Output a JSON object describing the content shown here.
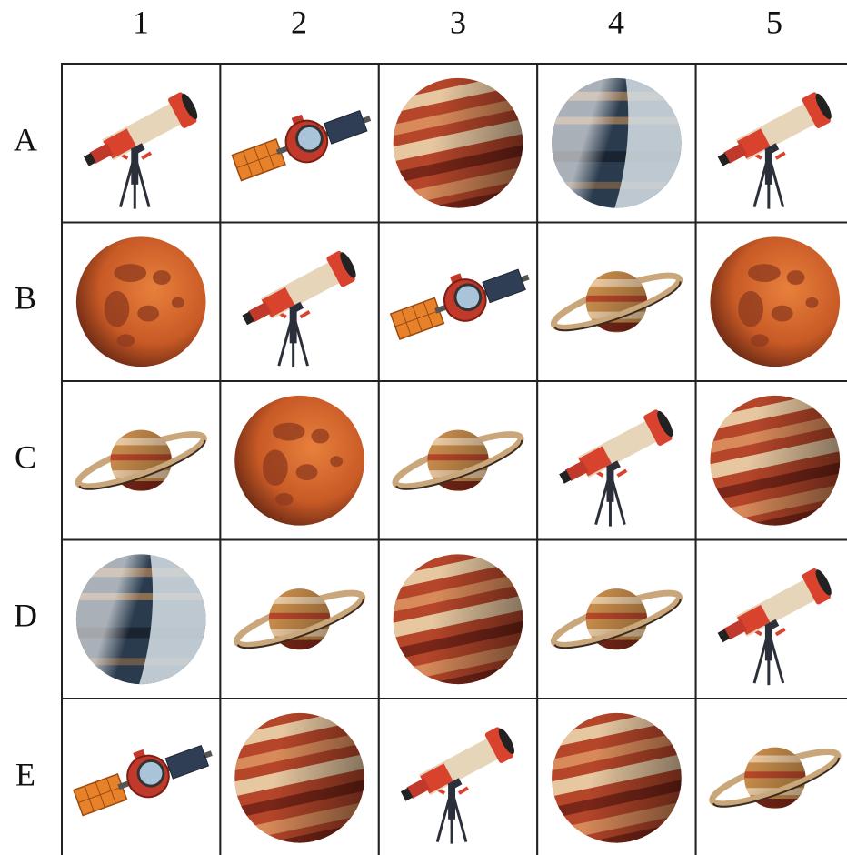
{
  "column_labels": [
    "1",
    "2",
    "3",
    "4",
    "5"
  ],
  "row_labels": [
    "A",
    "B",
    "C",
    "D",
    "E"
  ]
}
